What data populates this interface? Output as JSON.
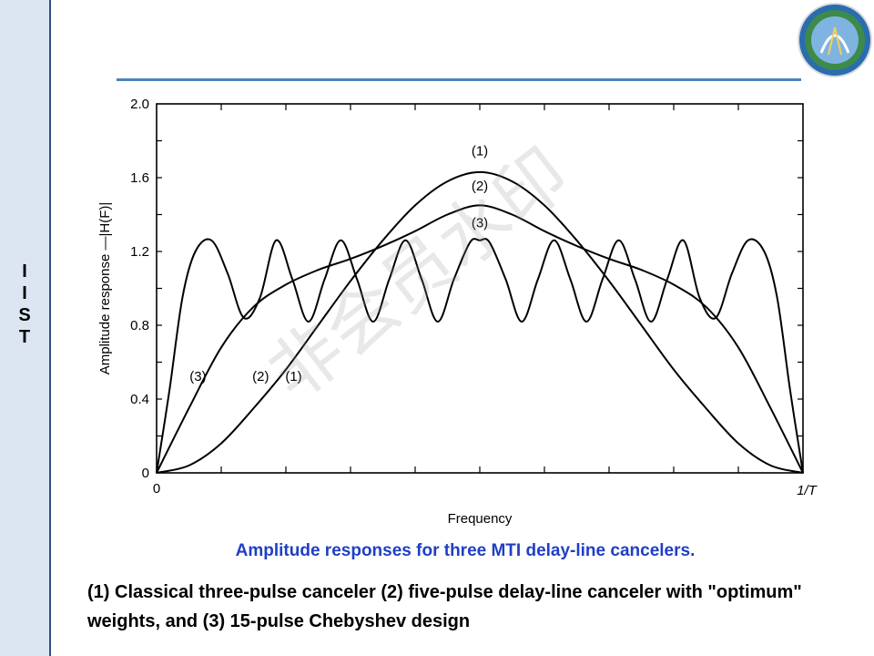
{
  "sidebar": {
    "letters": [
      "I",
      "I",
      "S",
      "T"
    ]
  },
  "logo": {
    "name": "institute-emblem"
  },
  "watermark": {
    "text": "非会员水印"
  },
  "colors": {
    "accent": "#4f81bd",
    "caption_blue": "#1f3fc4",
    "sidebar_bg": "#dce6f2"
  },
  "chart_data": {
    "type": "line",
    "title": "",
    "xlabel": "Frequency",
    "ylabel": "Amplitude response —|H(F)|",
    "ylim": [
      0,
      2.0
    ],
    "xlim": [
      0,
      1
    ],
    "y_ticks": [
      "0",
      "0.4",
      "0.8",
      "1.2",
      "1.6",
      "2.0"
    ],
    "x_ticks": [
      "0",
      "1/T"
    ],
    "series": [
      {
        "name": "(1)",
        "x": [
          0,
          0.05,
          0.1,
          0.15,
          0.2,
          0.25,
          0.3,
          0.35,
          0.4,
          0.45,
          0.5,
          0.55,
          0.6,
          0.65,
          0.7,
          0.75,
          0.8,
          0.85,
          0.9,
          0.95,
          1.0
        ],
        "values": [
          0,
          0.04,
          0.16,
          0.35,
          0.56,
          0.8,
          1.04,
          1.26,
          1.45,
          1.58,
          1.63,
          1.58,
          1.45,
          1.26,
          1.04,
          0.8,
          0.56,
          0.35,
          0.16,
          0.04,
          0
        ]
      },
      {
        "name": "(2)",
        "x": [
          0,
          0.05,
          0.1,
          0.15,
          0.2,
          0.25,
          0.3,
          0.35,
          0.4,
          0.45,
          0.5,
          0.55,
          0.6,
          0.65,
          0.7,
          0.75,
          0.8,
          0.85,
          0.9,
          0.95,
          1.0
        ],
        "values": [
          0,
          0.35,
          0.68,
          0.9,
          1.02,
          1.1,
          1.16,
          1.23,
          1.31,
          1.4,
          1.45,
          1.4,
          1.31,
          1.23,
          1.16,
          1.1,
          1.02,
          0.9,
          0.68,
          0.35,
          0
        ]
      },
      {
        "name": "(3)",
        "x": [
          0,
          0.02,
          0.04,
          0.06,
          0.085,
          0.11,
          0.135,
          0.16,
          0.185,
          0.21,
          0.235,
          0.26,
          0.285,
          0.31,
          0.335,
          0.36,
          0.385,
          0.41,
          0.435,
          0.46,
          0.485,
          0.5,
          0.515,
          0.54,
          0.565,
          0.59,
          0.615,
          0.64,
          0.665,
          0.69,
          0.715,
          0.74,
          0.765,
          0.79,
          0.815,
          0.84,
          0.865,
          0.89,
          0.915,
          0.94,
          0.96,
          0.98,
          1.0
        ],
        "values": [
          0,
          0.45,
          0.95,
          1.2,
          1.26,
          1.08,
          0.84,
          0.95,
          1.26,
          1.05,
          0.82,
          1.05,
          1.26,
          1.05,
          0.82,
          1.05,
          1.26,
          1.05,
          0.82,
          1.05,
          1.25,
          1.26,
          1.25,
          1.05,
          0.82,
          1.05,
          1.26,
          1.05,
          0.82,
          1.05,
          1.26,
          1.05,
          0.82,
          1.05,
          1.26,
          0.95,
          0.84,
          1.08,
          1.26,
          1.2,
          0.95,
          0.45,
          0
        ]
      }
    ],
    "annotations": [
      {
        "text": "(1)",
        "x": 0.5,
        "y": 1.72
      },
      {
        "text": "(2)",
        "x": 0.5,
        "y": 1.53
      },
      {
        "text": "(3)",
        "x": 0.5,
        "y": 1.33
      },
      {
        "text": "(3)",
        "x": 0.064,
        "y": 0.5
      },
      {
        "text": "(2)",
        "x": 0.161,
        "y": 0.5
      },
      {
        "text": "(1)",
        "x": 0.212,
        "y": 0.5
      }
    ],
    "grid": false
  },
  "caption": {
    "title": "Amplitude responses for three MTI delay-line cancelers.",
    "text": "(1) Classical three-pulse canceler (2) five-pulse delay-line canceler with \"optimum\" weights, and (3) 15-pulse Chebyshev design"
  }
}
